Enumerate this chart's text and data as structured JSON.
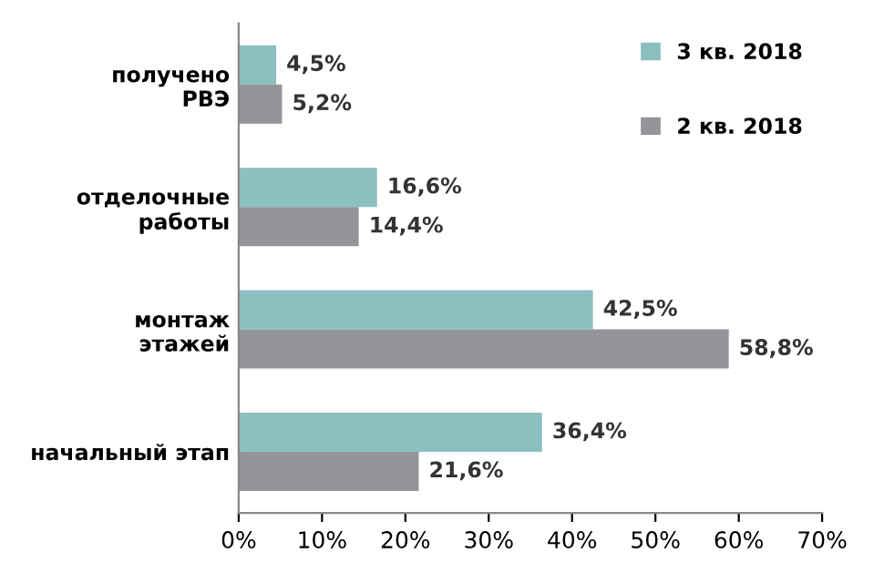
{
  "chart_data": {
    "type": "bar",
    "orientation": "horizontal",
    "categories": [
      "получено\nРВЭ",
      "отделочные\nработы",
      "монтаж\nэтажей",
      "начальный этап"
    ],
    "series": [
      {
        "name": "3 кв. 2018",
        "color": "#8bbfc0",
        "values": [
          4.5,
          16.6,
          42.5,
          36.4
        ],
        "value_labels": [
          "4,5%",
          "16,6%",
          "42,5%",
          "36,4%"
        ]
      },
      {
        "name": "2 кв. 2018",
        "color": "#939598",
        "values": [
          5.2,
          14.4,
          58.8,
          21.6
        ],
        "value_labels": [
          "5,2%",
          "14,4%",
          "58,8%",
          "21,6%"
        ]
      }
    ],
    "xlim": [
      0,
      70
    ],
    "xticks": [
      {
        "value": 0,
        "label": "0%"
      },
      {
        "value": 10,
        "label": "10%"
      },
      {
        "value": 20,
        "label": "20%"
      },
      {
        "value": 30,
        "label": "30%"
      },
      {
        "value": 40,
        "label": "40%"
      },
      {
        "value": 50,
        "label": "50%"
      },
      {
        "value": 60,
        "label": "60%"
      },
      {
        "value": 70,
        "label": "70%"
      }
    ],
    "grid": false,
    "legend": "right"
  }
}
